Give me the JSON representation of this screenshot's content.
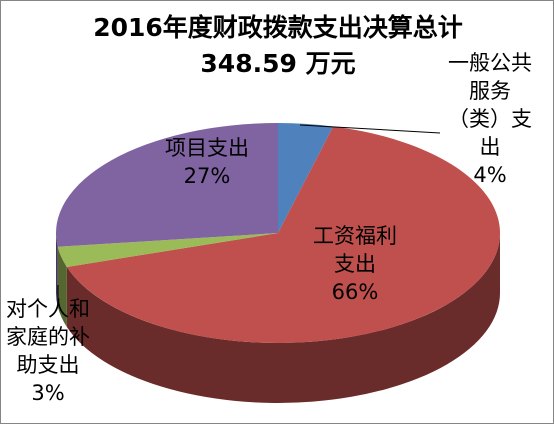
{
  "chart_data": {
    "type": "pie",
    "title": "2016年度财政拨款支出决算总计",
    "subtitle": "348.59  万元",
    "unit": "%",
    "slices": [
      {
        "label": "一般公共服务（类）支出",
        "value": 4,
        "display": "4%",
        "color": "#4F81BD",
        "label_lines": [
          "一般公共",
          "服务",
          "（类）支",
          "出",
          "4%"
        ]
      },
      {
        "label": "工资福利支出",
        "value": 66,
        "display": "66%",
        "color": "#C0504D",
        "label_lines": [
          "工资福利",
          "支出",
          "66%"
        ]
      },
      {
        "label": "对个人和家庭的补助支出",
        "value": 3,
        "display": "3%",
        "color": "#9BBB59",
        "label_lines": [
          "对个人和",
          "家庭的补",
          "助支出",
          "3%"
        ]
      },
      {
        "label": "项目支出",
        "value": 27,
        "display": "27%",
        "color": "#8064A2",
        "label_lines": [
          "项目支出",
          "27%"
        ]
      }
    ],
    "legend": "none",
    "style": "3d-pie"
  }
}
